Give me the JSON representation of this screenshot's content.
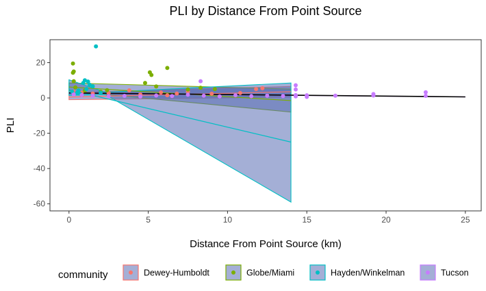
{
  "chart_data": {
    "type": "scatter",
    "title": "PLI by Distance From Point Source",
    "xlabel": "Distance From Point Source (km)",
    "ylabel": "PLI",
    "xlim": [
      -1.2,
      26.0
    ],
    "ylim": [
      -64,
      33
    ],
    "x_ticks": [
      0,
      5,
      10,
      15,
      20,
      25
    ],
    "y_ticks": [
      20,
      0,
      -20,
      -40,
      -60
    ],
    "grid": false,
    "legend": {
      "title": "community",
      "position": "bottom"
    },
    "series": [
      {
        "name": "Dewey-Humboldt",
        "color": "#F8766D",
        "points": [
          [
            0.3,
            3.5
          ],
          [
            0.8,
            3.0
          ],
          [
            1.5,
            2.5
          ],
          [
            2.5,
            2.8
          ],
          [
            3.8,
            4.3
          ],
          [
            4.5,
            2.0
          ],
          [
            5.8,
            3.1
          ],
          [
            6.8,
            2.5
          ],
          [
            7.5,
            3.6
          ],
          [
            9.0,
            2.4
          ],
          [
            10.8,
            2.8
          ],
          [
            11.8,
            5.0
          ],
          [
            12.2,
            5.5
          ],
          [
            6.2,
            1.5
          ]
        ],
        "fit_line": [
          [
            0.0,
            0.5
          ],
          [
            14.0,
            3.5
          ]
        ],
        "ci_band": [
          [
            0.0,
            3.0,
            -1.0
          ],
          [
            14.0,
            6.5,
            0.5
          ]
        ]
      },
      {
        "name": "Globe/Miami",
        "color": "#7CAE00",
        "points": [
          [
            0.25,
            19.5
          ],
          [
            0.3,
            15.0
          ],
          [
            0.25,
            14.3
          ],
          [
            0.3,
            9.5
          ],
          [
            0.4,
            6.0
          ],
          [
            1.0,
            4.2
          ],
          [
            2.0,
            3.5
          ],
          [
            2.4,
            4.4
          ],
          [
            4.8,
            8.5
          ],
          [
            5.1,
            14.5
          ],
          [
            5.2,
            13.0
          ],
          [
            5.5,
            6.5
          ],
          [
            6.2,
            17.0
          ],
          [
            7.5,
            4.8
          ],
          [
            8.3,
            5.8
          ],
          [
            9.2,
            5.0
          ]
        ],
        "fit_line": [
          [
            0.0,
            6.2
          ],
          [
            14.0,
            -1.5
          ]
        ],
        "ci_band": [
          [
            0.0,
            8.5,
            4.0
          ],
          [
            14.0,
            5.0,
            -8.0
          ]
        ]
      },
      {
        "name": "Hayden/Winkelman",
        "color": "#00BFC4",
        "points": [
          [
            0.2,
            3.5
          ],
          [
            0.5,
            2.8
          ],
          [
            0.6,
            4.2
          ],
          [
            0.9,
            8.5
          ],
          [
            1.0,
            10.0
          ],
          [
            1.2,
            9.3
          ],
          [
            1.3,
            7.5
          ],
          [
            1.5,
            6.6
          ],
          [
            1.7,
            29.2
          ],
          [
            2.0,
            3.0
          ],
          [
            0.7,
            2.3
          ],
          [
            1.1,
            5.0
          ]
        ],
        "fit_line": [
          [
            0.0,
            4.6
          ],
          [
            14.0,
            -25.0
          ]
        ],
        "ci_band": [
          [
            0.0,
            10.3,
            1.5
          ],
          [
            2.3,
            3.2,
            1.9
          ],
          [
            14.0,
            8.5,
            -59.0
          ]
        ]
      },
      {
        "name": "Tucson",
        "color": "#C77CFF",
        "points": [
          [
            0.3,
            2.0
          ],
          [
            0.8,
            1.6
          ],
          [
            1.5,
            1.3
          ],
          [
            2.5,
            1.0
          ],
          [
            3.5,
            1.2
          ],
          [
            4.5,
            0.8
          ],
          [
            5.5,
            1.4
          ],
          [
            6.5,
            1.1
          ],
          [
            7.5,
            1.8
          ],
          [
            8.3,
            9.5
          ],
          [
            8.5,
            1.3
          ],
          [
            9.5,
            0.9
          ],
          [
            10.5,
            1.5
          ],
          [
            11.5,
            1.0
          ],
          [
            12.5,
            1.3
          ],
          [
            13.5,
            1.1
          ],
          [
            14.3,
            7.2
          ],
          [
            14.3,
            4.8
          ],
          [
            14.3,
            1.6
          ],
          [
            14.3,
            0.9
          ],
          [
            15.0,
            1.5
          ],
          [
            15.0,
            0.6
          ],
          [
            16.8,
            1.3
          ],
          [
            19.2,
            2.2
          ],
          [
            19.2,
            1.4
          ],
          [
            22.5,
            3.2
          ],
          [
            22.5,
            1.2
          ]
        ],
        "fit_line": [
          [
            0.0,
            2.6
          ],
          [
            25.0,
            0.6
          ]
        ]
      }
    ],
    "overall_fit_line": {
      "color": "#000000",
      "points": [
        [
          0.0,
          2.8
        ],
        [
          25.0,
          0.6
        ]
      ]
    },
    "band_fill_color": "#5A6EB4"
  }
}
